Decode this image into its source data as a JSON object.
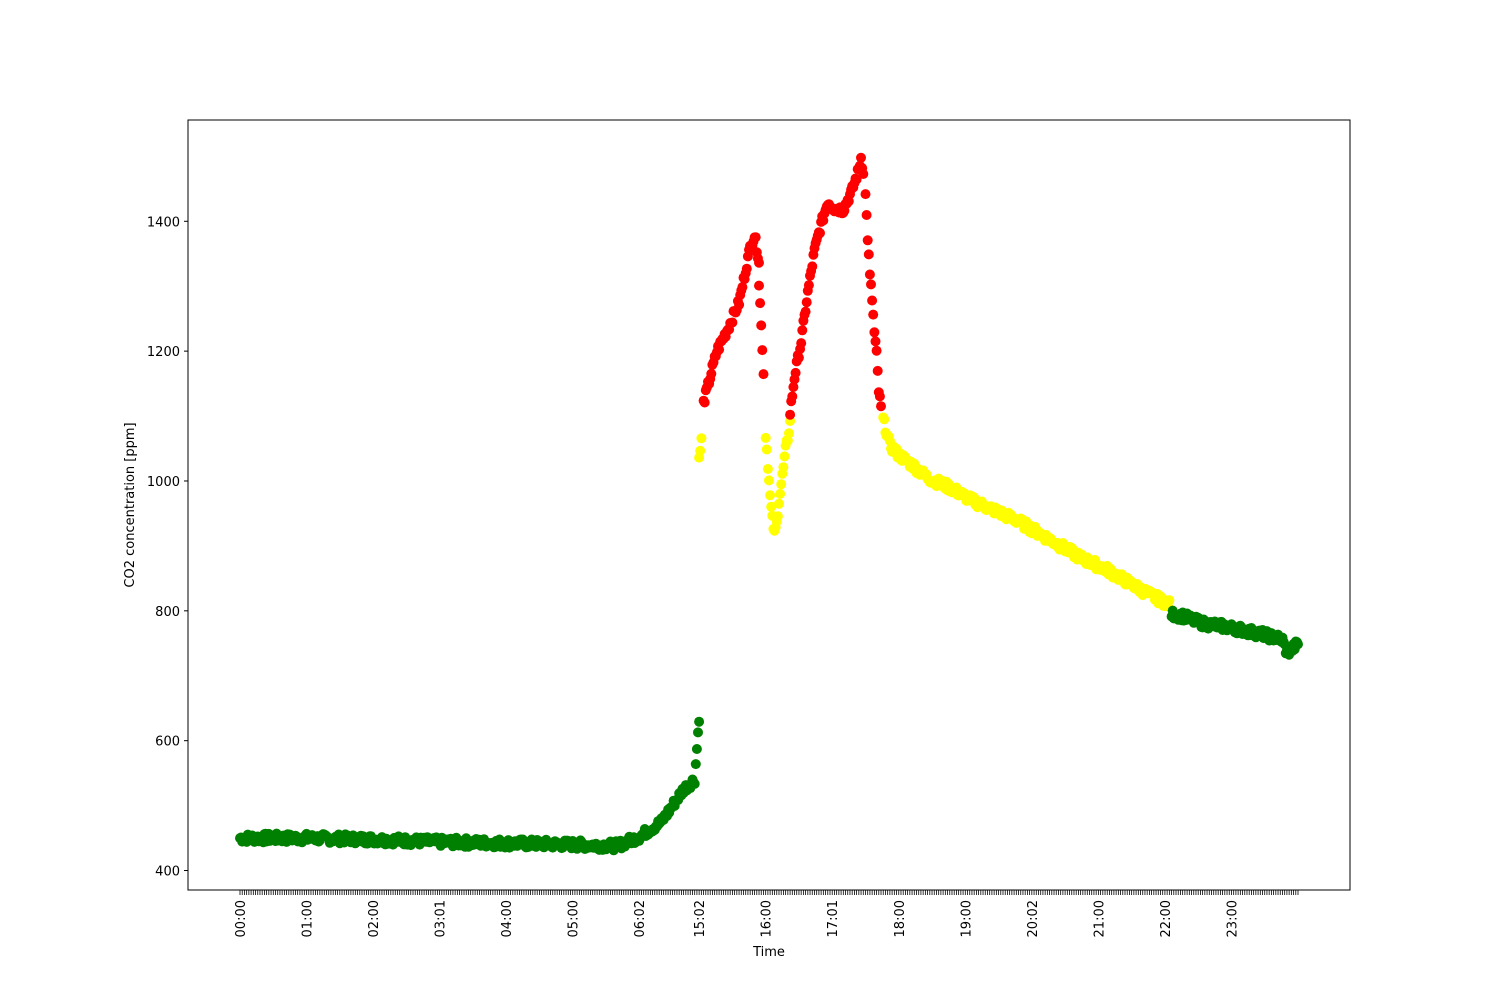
{
  "chart_data": {
    "type": "scatter",
    "title": "",
    "xlabel": "Time",
    "ylabel": "CO2 concentration [ppm]",
    "ylim": [
      370,
      1556
    ],
    "yticks": [
      400,
      600,
      800,
      1000,
      1200,
      1400
    ],
    "xtick_labels": [
      "00:00",
      "01:00",
      "02:00",
      "03:01",
      "04:00",
      "05:00",
      "06:02",
      "15:02",
      "16:00",
      "17:01",
      "18:00",
      "19:00",
      "20:02",
      "21:00",
      "22:00",
      "23:00"
    ],
    "xtick_indices": [
      0,
      30,
      60,
      90,
      120,
      150,
      180,
      207,
      237,
      267,
      297,
      327,
      357,
      387,
      417,
      447
    ],
    "sample_count": 478,
    "grid": false,
    "legend": "none",
    "colors": {
      "low": "#008000",
      "medium": "#ffff00",
      "high": "#ff0000"
    },
    "series": [
      {
        "color": "green",
        "x": [
          0,
          30,
          60,
          90,
          120,
          150,
          170,
          180,
          190,
          200,
          205,
          207
        ],
        "y": [
          450,
          450,
          448,
          444,
          442,
          440,
          438,
          452,
          475,
          525,
          540,
          636
        ]
      },
      {
        "color": "yellow",
        "x": [
          207,
          208
        ],
        "y": [
          1032,
          1063
        ]
      },
      {
        "color": "red",
        "x": [
          209,
          212,
          215,
          220,
          225,
          228,
          230,
          232,
          234
        ],
        "y": [
          1120,
          1160,
          1200,
          1235,
          1275,
          1325,
          1360,
          1378,
          1340
        ]
      },
      {
        "color": "red",
        "x": [
          234,
          235,
          236
        ],
        "y": [
          1300,
          1245,
          1165
        ]
      },
      {
        "color": "yellow",
        "x": [
          237,
          238,
          239,
          240,
          241,
          242,
          243,
          244,
          245,
          246,
          247,
          248
        ],
        "y": [
          1072,
          1025,
          975,
          940,
          918,
          935,
          970,
          995,
          1020,
          1048,
          1066,
          1090
        ]
      },
      {
        "color": "red",
        "x": [
          248,
          250,
          253,
          256,
          259,
          262,
          265,
          268,
          272,
          276,
          279,
          280,
          281
        ],
        "y": [
          1105,
          1160,
          1215,
          1290,
          1355,
          1395,
          1430,
          1420,
          1418,
          1448,
          1480,
          1498,
          1478
        ]
      },
      {
        "color": "red",
        "x": [
          282,
          283,
          284,
          285,
          286,
          287,
          288,
          289
        ],
        "y": [
          1440,
          1375,
          1315,
          1280,
          1228,
          1195,
          1138,
          1112
        ]
      },
      {
        "color": "yellow",
        "x": [
          290,
          293,
          297,
          303,
          310,
          320,
          330,
          340,
          350,
          360,
          370,
          380,
          390,
          400,
          410,
          419
        ],
        "y": [
          1095,
          1055,
          1040,
          1025,
          1005,
          990,
          970,
          955,
          940,
          920,
          900,
          880,
          865,
          845,
          825,
          810
        ]
      },
      {
        "color": "green",
        "x": [
          420,
          425,
          430,
          435,
          440,
          445,
          450,
          455,
          460,
          465,
          468,
          470,
          472,
          474,
          477
        ],
        "y": [
          795,
          792,
          785,
          780,
          778,
          775,
          772,
          768,
          765,
          760,
          758,
          755,
          735,
          740,
          750
        ]
      }
    ]
  }
}
